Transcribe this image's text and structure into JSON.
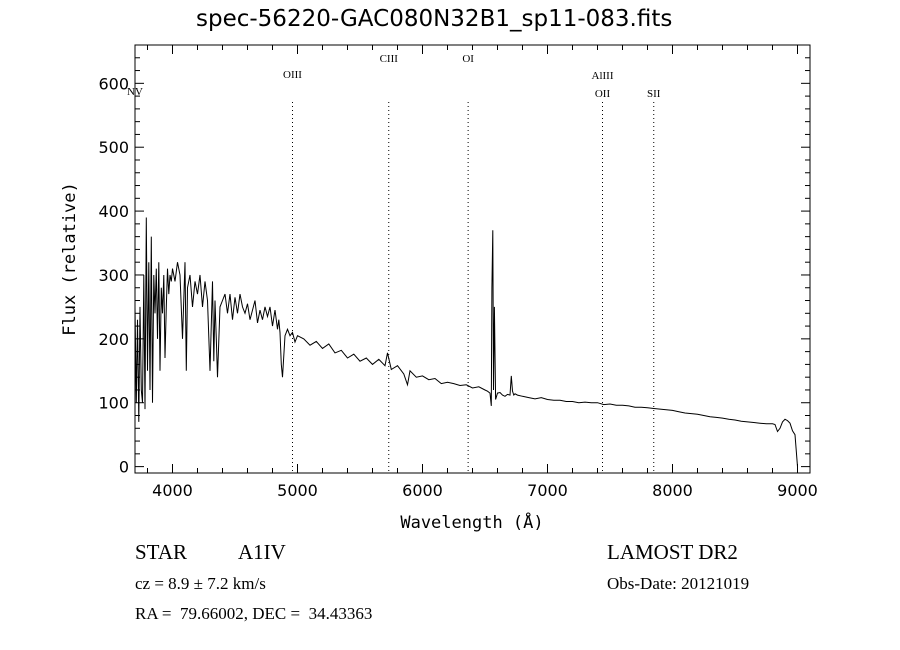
{
  "chart_data": {
    "type": "line",
    "title": "spec-56220-GAC080N32B1_sp11-083.fits",
    "xlabel": "Wavelength (Å)",
    "ylabel": "Flux (relative)",
    "xlim": [
      3700,
      9100
    ],
    "ylim": [
      -10,
      660
    ],
    "xticks": [
      4000,
      5000,
      6000,
      7000,
      8000,
      9000
    ],
    "yticks": [
      0,
      100,
      200,
      300,
      400,
      500,
      600
    ],
    "line_color": "#000000",
    "grid": false,
    "legend": "none",
    "lines": [
      {
        "label": "NV",
        "x": 3700,
        "style": "none"
      },
      {
        "label": "OIII",
        "x": 4960,
        "style": "dotted"
      },
      {
        "label": "CIII",
        "x": 5730,
        "style": "dotted"
      },
      {
        "label": "OI",
        "x": 6365,
        "style": "dotted"
      },
      {
        "label": "AlIII",
        "x": 7440,
        "style": "dotted"
      },
      {
        "label": "OII",
        "x": 7440,
        "style": "dotted"
      },
      {
        "label": "SII",
        "x": 7850,
        "style": "dotted"
      }
    ],
    "series": [
      {
        "x": [
          3700,
          3710,
          3720,
          3730,
          3740,
          3750,
          3760,
          3770,
          3780,
          3790,
          3800,
          3810,
          3820,
          3830,
          3840,
          3850,
          3860,
          3870,
          3880,
          3890,
          3900,
          3910,
          3920,
          3930,
          3940,
          3950,
          3960,
          3970,
          3980,
          3990,
          4000,
          4020,
          4040,
          4060,
          4080,
          4100,
          4110,
          4120,
          4140,
          4160,
          4180,
          4200,
          4220,
          4240,
          4260,
          4280,
          4300,
          4320,
          4330,
          4340,
          4350,
          4360,
          4380,
          4400,
          4420,
          4440,
          4460,
          4480,
          4500,
          4520,
          4540,
          4560,
          4580,
          4600,
          4620,
          4640,
          4660,
          4680,
          4700,
          4720,
          4740,
          4760,
          4780,
          4800,
          4820,
          4840,
          4850,
          4860,
          4870,
          4880,
          4900,
          4920,
          4940,
          4960,
          4980,
          5000,
          5050,
          5100,
          5150,
          5200,
          5250,
          5300,
          5350,
          5400,
          5450,
          5500,
          5550,
          5600,
          5650,
          5700,
          5720,
          5750,
          5800,
          5850,
          5880,
          5900,
          5950,
          6000,
          6050,
          6100,
          6150,
          6200,
          6250,
          6300,
          6350,
          6400,
          6450,
          6500,
          6520,
          6540,
          6550,
          6555,
          6562,
          6568,
          6575,
          6585,
          6600,
          6620,
          6640,
          6660,
          6680,
          6700,
          6710,
          6720,
          6730,
          6740,
          6760,
          6800,
          6850,
          6900,
          6950,
          7000,
          7050,
          7100,
          7150,
          7200,
          7250,
          7300,
          7350,
          7400,
          7450,
          7500,
          7550,
          7600,
          7650,
          7700,
          7750,
          7800,
          7850,
          7900,
          7950,
          8000,
          8050,
          8100,
          8150,
          8200,
          8250,
          8300,
          8350,
          8400,
          8450,
          8500,
          8550,
          8600,
          8650,
          8700,
          8750,
          8800,
          8820,
          8840,
          8860,
          8880,
          8900,
          8920,
          8940,
          8960,
          8980,
          9000
        ],
        "values": [
          250,
          100,
          230,
          70,
          250,
          120,
          100,
          300,
          90,
          390,
          150,
          320,
          120,
          360,
          100,
          300,
          240,
          310,
          200,
          320,
          150,
          280,
          240,
          300,
          170,
          250,
          310,
          270,
          300,
          290,
          310,
          290,
          320,
          300,
          200,
          320,
          150,
          280,
          300,
          250,
          290,
          270,
          300,
          250,
          290,
          260,
          150,
          290,
          165,
          260,
          200,
          140,
          250,
          260,
          270,
          240,
          270,
          230,
          265,
          240,
          270,
          250,
          240,
          255,
          230,
          245,
          260,
          225,
          245,
          230,
          250,
          235,
          250,
          220,
          245,
          215,
          230,
          210,
          160,
          140,
          205,
          215,
          205,
          210,
          195,
          205,
          200,
          190,
          196,
          185,
          192,
          178,
          182,
          170,
          176,
          165,
          170,
          160,
          168,
          158,
          178,
          152,
          158,
          145,
          128,
          150,
          140,
          142,
          136,
          138,
          130,
          132,
          130,
          127,
          128,
          123,
          125,
          120,
          118,
          115,
          95,
          280,
          370,
          120,
          250,
          105,
          115,
          116,
          112,
          110,
          113,
          112,
          142,
          118,
          112,
          114,
          112,
          110,
          108,
          106,
          108,
          105,
          104,
          104,
          102,
          102,
          100,
          101,
          100,
          100,
          97,
          98,
          96,
          96,
          95,
          93,
          93,
          92,
          91,
          90,
          89,
          88,
          86,
          84,
          83,
          82,
          80,
          78,
          77,
          76,
          74,
          73,
          71,
          70,
          69,
          68,
          67,
          67,
          66,
          55,
          60,
          70,
          74,
          72,
          68,
          56,
          50,
          0
        ]
      }
    ]
  },
  "info": {
    "class_label": "STAR",
    "subclass": "A1IV",
    "redshift": "cz = 8.9 ± 7.2 km/s",
    "coords": "RA =  79.66002, DEC =  34.43363",
    "survey": "LAMOST DR2",
    "obs_date": "Obs-Date: 20121019"
  }
}
